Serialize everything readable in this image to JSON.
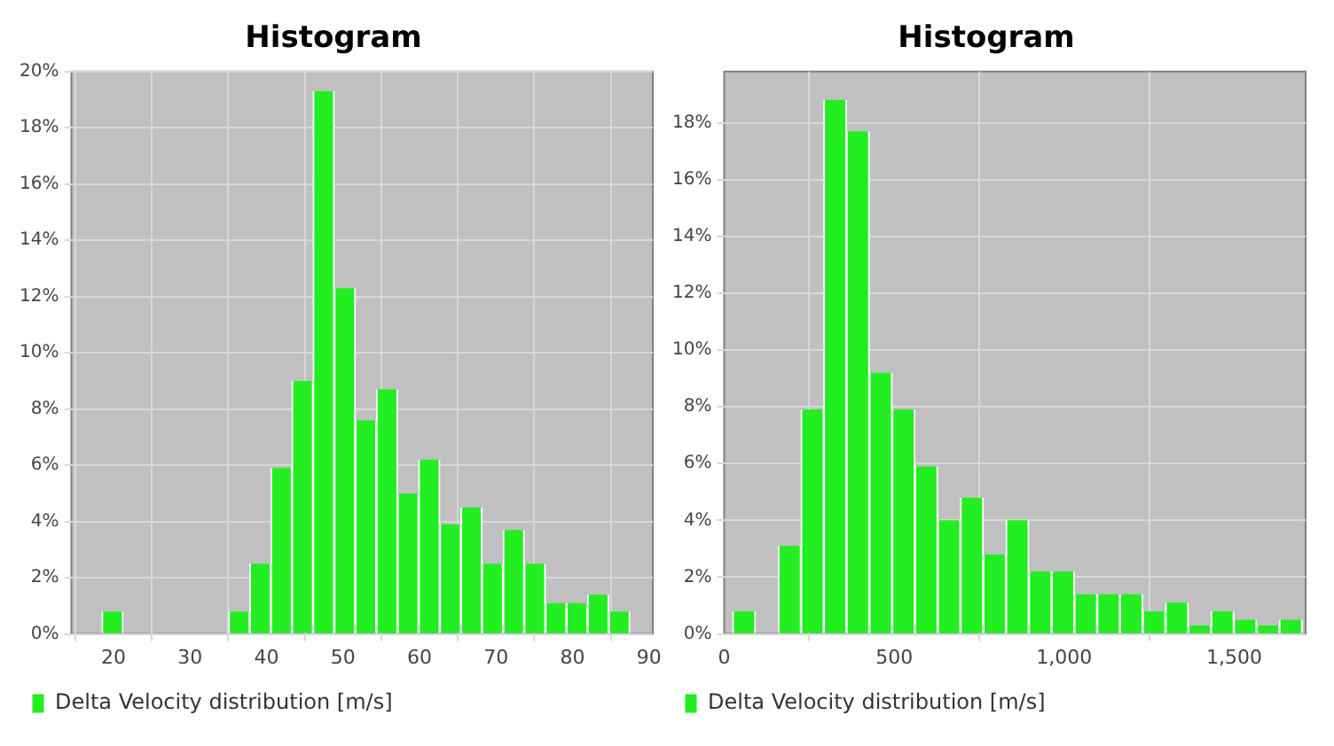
{
  "chart_data": [
    {
      "type": "histogram",
      "title": "Histogram",
      "bins": [
        18.5,
        21.26,
        24.02,
        26.78,
        29.54,
        32.3,
        35.06,
        37.82,
        40.58,
        43.34,
        46.1,
        48.86,
        51.62,
        54.38,
        57.14,
        59.9,
        62.66,
        65.42,
        68.18,
        70.94,
        73.7,
        76.46,
        79.22,
        81.98,
        84.74,
        87.5
      ],
      "series": [
        {
          "name": "Delta Velocity distribution [m/s]",
          "color": "#22ee22",
          "values": [
            0.8,
            0,
            0,
            0,
            0,
            0,
            0.8,
            2.5,
            5.9,
            9.0,
            19.3,
            12.3,
            7.6,
            8.7,
            5.0,
            6.2,
            3.9,
            4.5,
            2.5,
            3.7,
            2.5,
            1.1,
            1.1,
            1.4,
            0.8
          ]
        }
      ],
      "xlim": [
        14.5,
        90.5
      ],
      "xticks": [
        20,
        30,
        40,
        50,
        60,
        70,
        80,
        90
      ],
      "ylim": [
        0,
        20
      ],
      "yticks": [
        {
          "value": 0,
          "label": "0%"
        },
        {
          "value": 2,
          "label": "2%"
        },
        {
          "value": 4,
          "label": "4%"
        },
        {
          "value": 6,
          "label": "6%"
        },
        {
          "value": 8,
          "label": "8%"
        },
        {
          "value": 10,
          "label": "10%"
        },
        {
          "value": 12,
          "label": "12%"
        },
        {
          "value": 14,
          "label": "14%"
        },
        {
          "value": 16,
          "label": "16%"
        },
        {
          "value": 18,
          "label": "18%"
        },
        {
          "value": 20,
          "label": "20%"
        }
      ],
      "grid": true,
      "legend": "bottom"
    },
    {
      "type": "histogram",
      "title": "Histogram",
      "bins": [
        25,
        92,
        159,
        226,
        293,
        360,
        427,
        494,
        561,
        628,
        695,
        762,
        829,
        896,
        963,
        1030,
        1097,
        1164,
        1231,
        1298,
        1365,
        1432,
        1499,
        1566,
        1633,
        1700
      ],
      "series": [
        {
          "name": "Delta Velocity distribution [m/s]",
          "color": "#22ee22",
          "values": [
            0.8,
            0,
            3.1,
            7.9,
            18.8,
            17.7,
            9.2,
            7.9,
            5.9,
            4.0,
            4.8,
            2.8,
            4.0,
            2.2,
            2.2,
            1.4,
            1.4,
            1.4,
            0.8,
            1.1,
            0.3,
            0.8,
            0.5,
            0.3,
            0.5
          ]
        }
      ],
      "xlim": [
        0,
        1710
      ],
      "xticks": [
        0,
        500,
        {
          "value": 1000,
          "label": "1,000"
        },
        {
          "value": 1500,
          "label": "1,500"
        }
      ],
      "ylim": [
        0,
        19.8
      ],
      "yticks": [
        {
          "value": 0,
          "label": "0%"
        },
        {
          "value": 2,
          "label": "2%"
        },
        {
          "value": 4,
          "label": "4%"
        },
        {
          "value": 6,
          "label": "6%"
        },
        {
          "value": 8,
          "label": "8%"
        },
        {
          "value": 10,
          "label": "10%"
        },
        {
          "value": 12,
          "label": "12%"
        },
        {
          "value": 14,
          "label": "14%"
        },
        {
          "value": 16,
          "label": "16%"
        },
        {
          "value": 18,
          "label": "18%"
        }
      ],
      "grid": true,
      "legend": "bottom"
    }
  ]
}
